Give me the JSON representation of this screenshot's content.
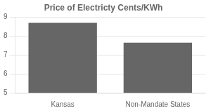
{
  "chart_data": {
    "type": "bar",
    "title": "Price of Electricty Cents/KWh",
    "categories": [
      "Kansas",
      "Non-Mandate States"
    ],
    "values": [
      8.7,
      7.65
    ],
    "color": "#666666",
    "ylim": [
      5,
      9
    ],
    "yticks": [
      5,
      6,
      7,
      8,
      9
    ],
    "grid": true
  }
}
